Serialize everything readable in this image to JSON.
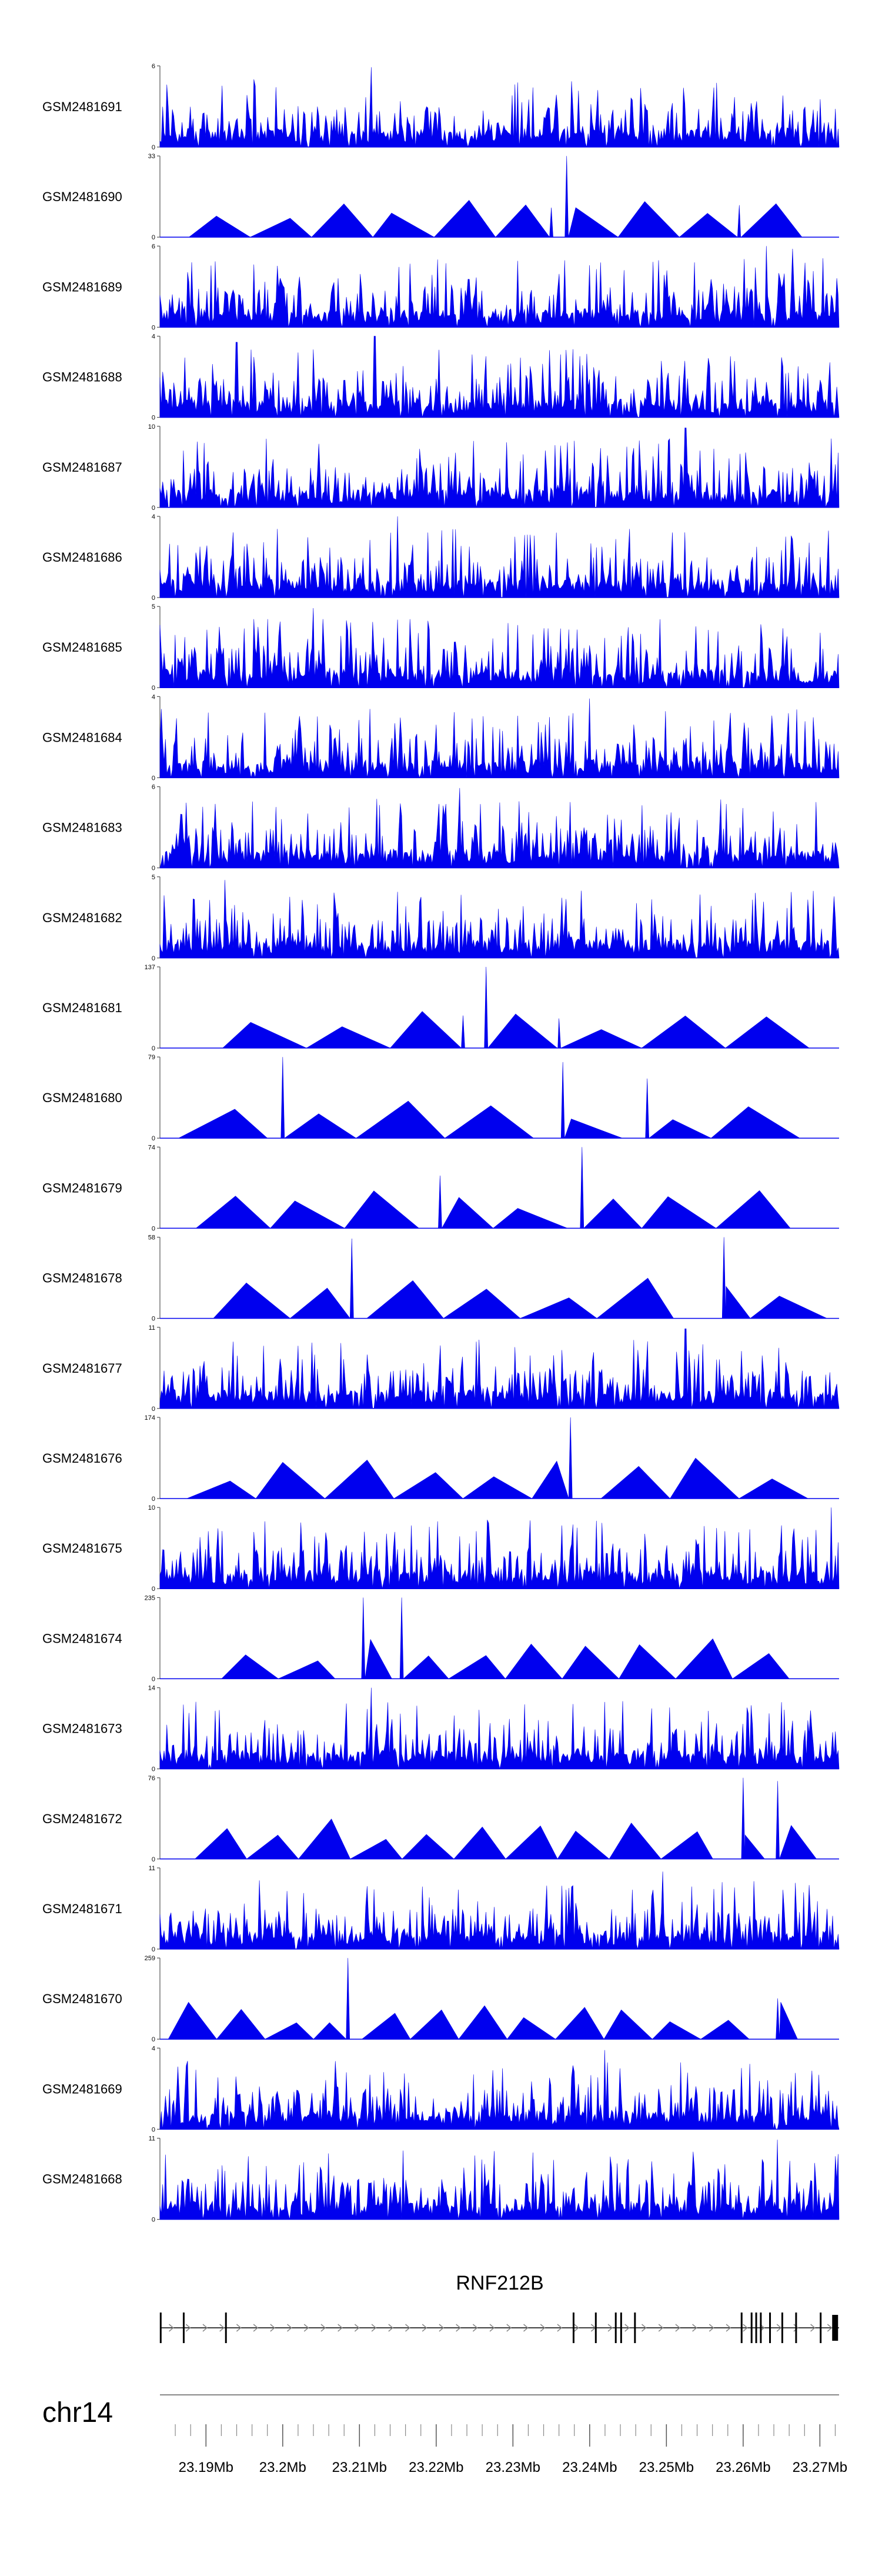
{
  "chart_data": {
    "type": "area",
    "title": "",
    "region": {
      "chromosome": "chr14",
      "start_mb": 23.184,
      "end_mb": 23.2725
    },
    "colors": {
      "signal": "#0000ee",
      "axis": "#555555",
      "gene": "#000000"
    },
    "tracks": [
      {
        "name": "GSM2481691",
        "ymax": 6,
        "pattern": "dense",
        "peaks": [
          [
            23.2115,
            5.9
          ]
        ]
      },
      {
        "name": "GSM2481690",
        "ymax": 33,
        "pattern": "triangles",
        "peaks": [
          [
            23.237,
            33
          ],
          [
            23.235,
            12
          ],
          [
            23.2595,
            13
          ]
        ]
      },
      {
        "name": "GSM2481689",
        "ymax": 6,
        "pattern": "dense",
        "peaks": [
          [
            23.263,
            6
          ],
          [
            23.2665,
            5.8
          ]
        ]
      },
      {
        "name": "GSM2481688",
        "ymax": 4,
        "pattern": "dense",
        "peaks": [
          [
            23.212,
            4
          ],
          [
            23.194,
            3.7
          ]
        ]
      },
      {
        "name": "GSM2481687",
        "ymax": 10,
        "pattern": "dense",
        "peaks": [
          [
            23.2525,
            9.8
          ]
        ]
      },
      {
        "name": "GSM2481686",
        "ymax": 4,
        "pattern": "dense",
        "peaks": [
          [
            23.215,
            4
          ]
        ]
      },
      {
        "name": "GSM2481685",
        "ymax": 5,
        "pattern": "dense",
        "peaks": [
          [
            23.204,
            4.9
          ]
        ]
      },
      {
        "name": "GSM2481684",
        "ymax": 4,
        "pattern": "dense",
        "peaks": [
          [
            23.24,
            3.9
          ]
        ]
      },
      {
        "name": "GSM2481683",
        "ymax": 6,
        "pattern": "dense",
        "peaks": [
          [
            23.223,
            5.9
          ]
        ]
      },
      {
        "name": "GSM2481682",
        "ymax": 5,
        "pattern": "dense",
        "peaks": [
          [
            23.1925,
            4.8
          ]
        ]
      },
      {
        "name": "GSM2481681",
        "ymax": 137,
        "pattern": "triangles",
        "peaks": [
          [
            23.2265,
            137
          ],
          [
            23.2235,
            55
          ],
          [
            23.236,
            50
          ]
        ]
      },
      {
        "name": "GSM2481680",
        "ymax": 79,
        "pattern": "triangles",
        "peaks": [
          [
            23.2,
            79
          ],
          [
            23.2365,
            74
          ],
          [
            23.2475,
            58
          ]
        ]
      },
      {
        "name": "GSM2481679",
        "ymax": 74,
        "pattern": "triangles",
        "peaks": [
          [
            23.239,
            74
          ],
          [
            23.2205,
            48
          ]
        ]
      },
      {
        "name": "GSM2481678",
        "ymax": 58,
        "pattern": "triangles",
        "peaks": [
          [
            23.2575,
            58
          ],
          [
            23.209,
            57
          ]
        ]
      },
      {
        "name": "GSM2481677",
        "ymax": 11,
        "pattern": "dense",
        "peaks": [
          [
            23.2525,
            10.8
          ],
          [
            23.202,
            8.5
          ],
          [
            23.1975,
            8.5
          ]
        ]
      },
      {
        "name": "GSM2481676",
        "ymax": 174,
        "pattern": "triangles",
        "peaks": [
          [
            23.2375,
            174
          ]
        ]
      },
      {
        "name": "GSM2481675",
        "ymax": 10,
        "pattern": "dense",
        "peaks": [
          [
            23.2715,
            10
          ]
        ]
      },
      {
        "name": "GSM2481674",
        "ymax": 235,
        "pattern": "triangles",
        "peaks": [
          [
            23.2105,
            235
          ],
          [
            23.2155,
            235
          ]
        ]
      },
      {
        "name": "GSM2481673",
        "ymax": 14,
        "pattern": "dense",
        "peaks": [
          [
            23.2115,
            14
          ]
        ]
      },
      {
        "name": "GSM2481672",
        "ymax": 76,
        "pattern": "triangles",
        "peaks": [
          [
            23.26,
            76
          ],
          [
            23.2645,
            73
          ]
        ]
      },
      {
        "name": "GSM2481671",
        "ymax": 11,
        "pattern": "dense",
        "peaks": [
          [
            23.2495,
            10.5
          ]
        ]
      },
      {
        "name": "GSM2481670",
        "ymax": 259,
        "pattern": "triangles",
        "peaks": [
          [
            23.2085,
            259
          ],
          [
            23.2645,
            130
          ]
        ]
      },
      {
        "name": "GSM2481669",
        "ymax": 4,
        "pattern": "dense",
        "peaks": [
          [
            23.242,
            3.9
          ]
        ]
      },
      {
        "name": "GSM2481668",
        "ymax": 11,
        "pattern": "dense",
        "peaks": [
          [
            23.2645,
            10.8
          ]
        ]
      }
    ],
    "gene": {
      "name": "RNF212B",
      "strand": "+",
      "start_mb": 23.184,
      "end_mb": 23.2725
    },
    "x_axis": {
      "tick_labels": [
        "23.19Mb",
        "23.2Mb",
        "23.21Mb",
        "23.22Mb",
        "23.23Mb",
        "23.24Mb",
        "23.25Mb",
        "23.26Mb",
        "23.27Mb"
      ],
      "tick_values": [
        23.19,
        23.2,
        23.21,
        23.22,
        23.23,
        23.24,
        23.25,
        23.26,
        23.27
      ],
      "minor_step_mb": 0.002
    }
  }
}
